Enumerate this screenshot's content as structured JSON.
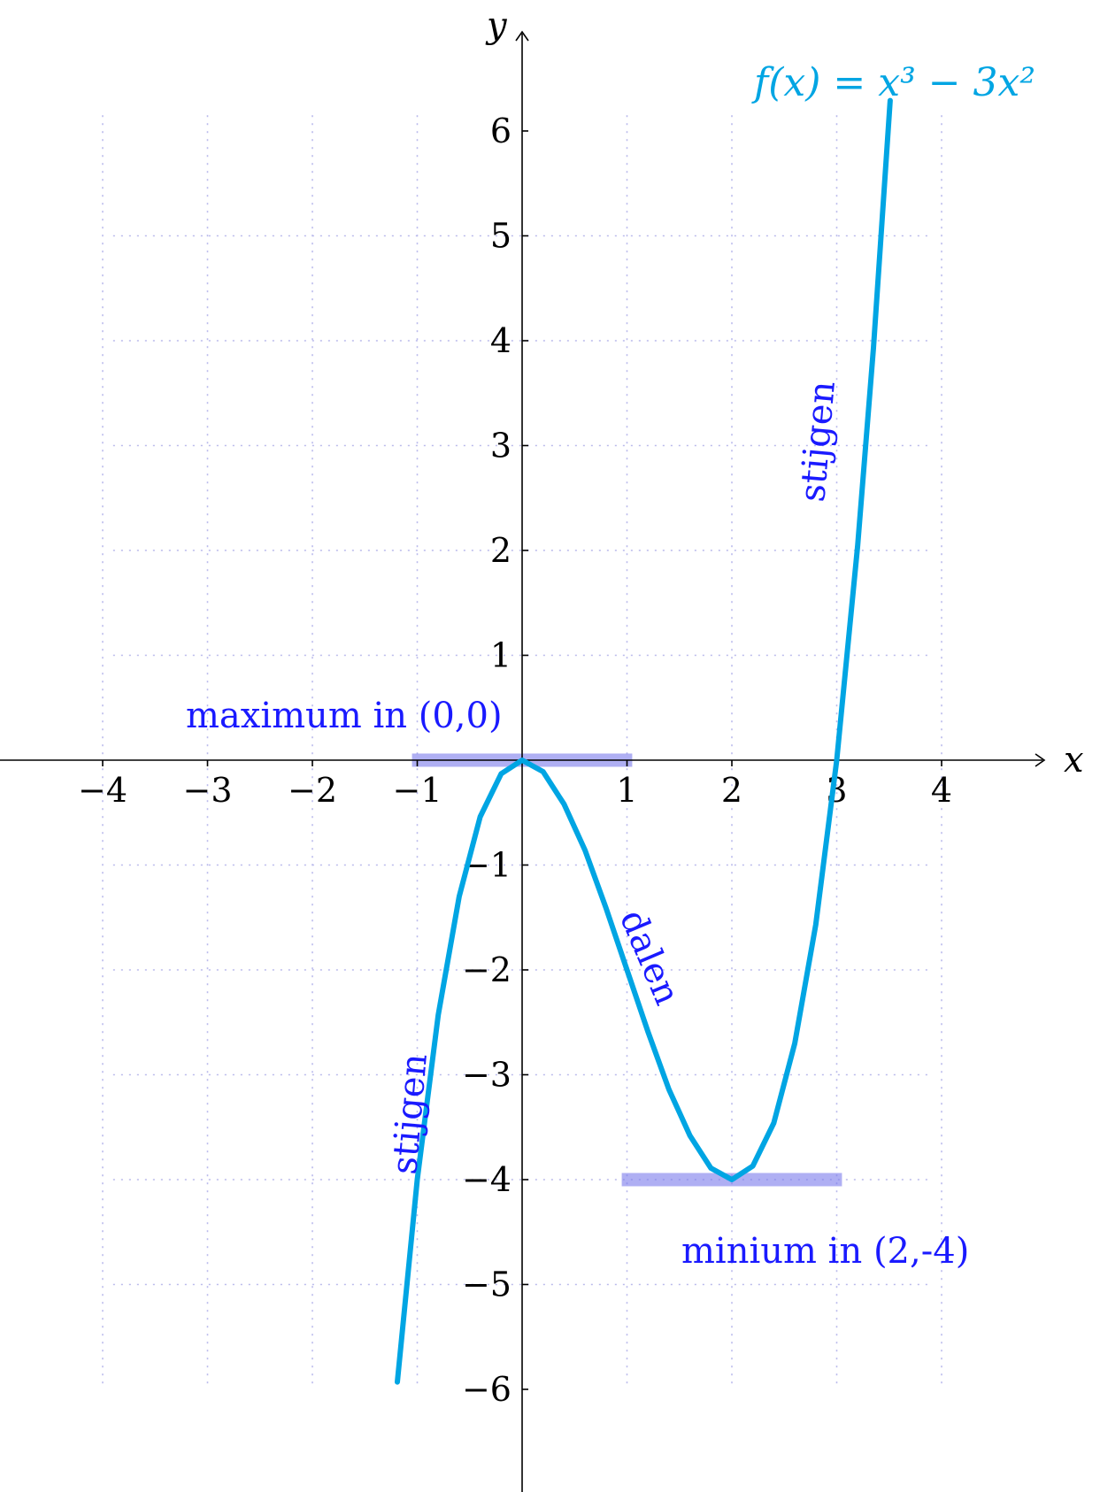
{
  "chart_data": {
    "type": "line",
    "xlabel": "x",
    "ylabel": "y",
    "xlim": [
      -5,
      5
    ],
    "ylim": [
      -7,
      7
    ],
    "grid": true,
    "xticks": [
      -4,
      -3,
      -2,
      -1,
      1,
      2,
      3,
      4
    ],
    "yticks": [
      -6,
      -5,
      -4,
      -3,
      -2,
      -1,
      1,
      2,
      3,
      4,
      5,
      6
    ],
    "xtick_labels": [
      "−4",
      "−3",
      "−2",
      "−1",
      "1",
      "2",
      "3",
      "4"
    ],
    "ytick_labels": [
      "−6",
      "−5",
      "−4",
      "−3",
      "−2",
      "−1",
      "1",
      "2",
      "3",
      "4",
      "5",
      "6"
    ],
    "series": [
      {
        "name": "f(x) = x³ − 3x²",
        "x": [
          -1.19,
          -1.0,
          -0.8,
          -0.6,
          -0.4,
          -0.2,
          0,
          0.2,
          0.4,
          0.6,
          0.8,
          1.0,
          1.2,
          1.4,
          1.6,
          1.8,
          2.0,
          2.2,
          2.4,
          2.6,
          2.8,
          3.0,
          3.2,
          3.35,
          3.51
        ],
        "y": [
          -5.93,
          -4.0,
          -2.43,
          -1.3,
          -0.54,
          -0.13,
          0,
          -0.11,
          -0.42,
          -0.86,
          -1.41,
          -2.0,
          -2.59,
          -3.14,
          -3.58,
          -3.89,
          -4.0,
          -3.87,
          -3.46,
          -2.7,
          -1.57,
          0,
          2.05,
          3.93,
          6.29
        ],
        "color": "#00a5e3"
      }
    ],
    "highlights": [
      {
        "x": [
          -1.05,
          1.05
        ],
        "y": 0,
        "color": "#7b7bec"
      },
      {
        "x": [
          0.95,
          3.05
        ],
        "y": -4,
        "color": "#7b7bec"
      }
    ],
    "annotations": {
      "function_label": {
        "text": "f(x) = x³ − 3x²",
        "color": "#00a5e3"
      },
      "maximum": {
        "text": "maximum in (0,0)",
        "color": "#1a1aff"
      },
      "minimum": {
        "text": "minium in (2,-4)",
        "color": "#1a1aff"
      },
      "rising_left": {
        "text": "stijgen",
        "color": "#1a1aff"
      },
      "falling": {
        "text": "dalen",
        "color": "#1a1aff"
      },
      "rising_right": {
        "text": "stijgen",
        "color": "#1a1aff"
      }
    }
  }
}
